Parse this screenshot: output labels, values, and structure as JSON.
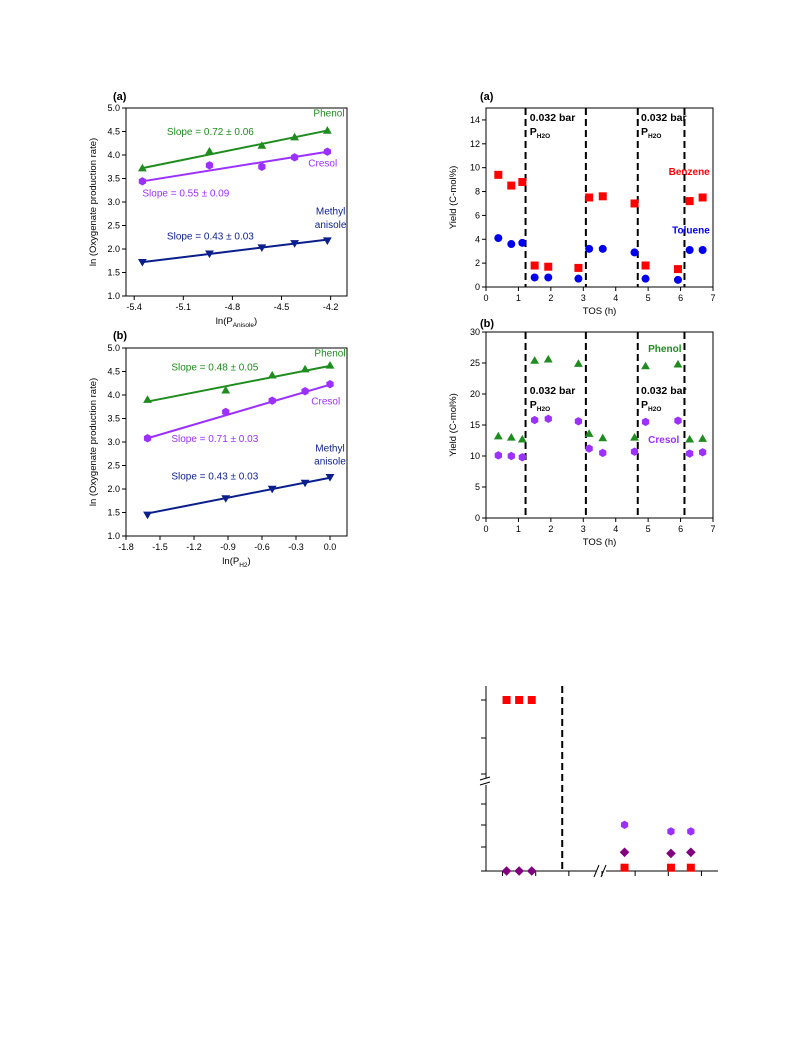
{
  "colors": {
    "phenol": "#1e8c1e",
    "cresol": "#9b30ff",
    "methyl_anisole": "#0a1e8c",
    "benzene": "#ff0000",
    "toluene": "#0000ee",
    "diamond": "#800080"
  },
  "chart_data": [
    {
      "id": "left-a",
      "type": "scatter",
      "panel_label": "(a)",
      "xlabel_main": "ln(P",
      "xlabel_sub": "Anisole",
      "xlabel_tail": ")",
      "ylabel": "ln (Oxygenate production rate)",
      "xlim": [
        -5.45,
        -4.1
      ],
      "ylim": [
        1.0,
        5.0
      ],
      "xticks": [
        -5.4,
        -5.1,
        -4.8,
        -4.5,
        -4.2
      ],
      "xtick_labels": [
        "-5.4",
        "-5.1",
        "-4.8",
        "-4.5",
        "-4.2"
      ],
      "yticks": [
        1.0,
        1.5,
        2.0,
        2.5,
        3.0,
        3.5,
        4.0,
        4.5,
        5.0
      ],
      "ytick_labels": [
        "1.0",
        "1.5",
        "2.0",
        "2.5",
        "3.0",
        "3.5",
        "4.0",
        "4.5",
        "5.0"
      ],
      "series": [
        {
          "name": "Phenol",
          "marker": "triangle-up",
          "color": "#1e8c1e",
          "x": [
            -5.35,
            -4.94,
            -4.62,
            -4.42,
            -4.22
          ],
          "y": [
            3.72,
            4.08,
            4.2,
            4.38,
            4.52
          ],
          "fit": [
            [
              -5.35,
              3.72
            ],
            [
              -4.22,
              4.52
            ]
          ]
        },
        {
          "name": "Cresol",
          "marker": "hexagon",
          "color": "#9b30ff",
          "x": [
            -5.35,
            -4.94,
            -4.62,
            -4.42,
            -4.22
          ],
          "y": [
            3.44,
            3.78,
            3.75,
            3.95,
            4.07
          ],
          "fit": [
            [
              -5.35,
              3.44
            ],
            [
              -4.22,
              4.07
            ]
          ]
        },
        {
          "name": "Methyl anisole",
          "marker": "triangle-down",
          "color": "#0a1e8c",
          "x": [
            -5.35,
            -4.94,
            -4.62,
            -4.42,
            -4.22
          ],
          "y": [
            1.72,
            1.9,
            2.03,
            2.12,
            2.18
          ],
          "fit": [
            [
              -5.35,
              1.72
            ],
            [
              -4.22,
              2.2
            ]
          ]
        }
      ],
      "annotations": [
        {
          "text": "Phenol",
          "x": -4.21,
          "y": 4.82,
          "color": "#1e8c1e",
          "anchor": "middle"
        },
        {
          "text": "Slope = 0.72 ± 0.06",
          "x": -5.2,
          "y": 4.43,
          "color": "#1e8c1e",
          "anchor": "start"
        },
        {
          "text": "Cresol",
          "x": -4.16,
          "y": 3.76,
          "color": "#9b30ff",
          "anchor": "end"
        },
        {
          "text": "Slope = 0.55 ± 0.09",
          "x": -5.35,
          "y": 3.12,
          "color": "#9b30ff",
          "anchor": "start"
        },
        {
          "text": "Methyl",
          "x": -4.2,
          "y": 2.73,
          "color": "#0a1e8c",
          "anchor": "middle"
        },
        {
          "text": "anisole",
          "x": -4.2,
          "y": 2.45,
          "color": "#0a1e8c",
          "anchor": "middle"
        },
        {
          "text": "Slope = 0.43 ± 0.03",
          "x": -5.2,
          "y": 2.2,
          "color": "#0a1e8c",
          "anchor": "start"
        }
      ]
    },
    {
      "id": "left-b",
      "type": "scatter",
      "panel_label": "(b)",
      "xlabel_main": "ln(P",
      "xlabel_sub": "H2",
      "xlabel_tail": ")",
      "ylabel": "ln (Oxygenate production rate)",
      "xlim": [
        -1.8,
        0.15
      ],
      "ylim": [
        1.0,
        5.0
      ],
      "xticks": [
        -1.8,
        -1.5,
        -1.2,
        -0.9,
        -0.6,
        -0.3,
        0.0
      ],
      "xtick_labels": [
        "-1.8",
        "-1.5",
        "-1.2",
        "-0.9",
        "-0.6",
        "-0.3",
        "0.0"
      ],
      "yticks": [
        1.0,
        1.5,
        2.0,
        2.5,
        3.0,
        3.5,
        4.0,
        4.5,
        5.0
      ],
      "ytick_labels": [
        "1.0",
        "1.5",
        "2.0",
        "2.5",
        "3.0",
        "3.5",
        "4.0",
        "4.5",
        "5.0"
      ],
      "series": [
        {
          "name": "Phenol",
          "marker": "triangle-up",
          "color": "#1e8c1e",
          "x": [
            -1.61,
            -0.92,
            -0.51,
            -0.22,
            0.0
          ],
          "y": [
            3.9,
            4.1,
            4.42,
            4.55,
            4.63
          ],
          "fit": [
            [
              -1.61,
              3.86
            ],
            [
              0.0,
              4.62
            ]
          ]
        },
        {
          "name": "Cresol",
          "marker": "hexagon",
          "color": "#9b30ff",
          "x": [
            -1.61,
            -0.92,
            -0.51,
            -0.22,
            0.0
          ],
          "y": [
            3.08,
            3.64,
            3.88,
            4.08,
            4.23
          ],
          "fit": [
            [
              -1.61,
              3.08
            ],
            [
              0.0,
              4.22
            ]
          ]
        },
        {
          "name": "Methyl anisole",
          "marker": "triangle-down",
          "color": "#0a1e8c",
          "x": [
            -1.61,
            -0.92,
            -0.51,
            -0.22,
            0.0
          ],
          "y": [
            1.45,
            1.8,
            2.0,
            2.13,
            2.25
          ],
          "fit": [
            [
              -1.61,
              1.48
            ],
            [
              0.0,
              2.24
            ]
          ]
        }
      ],
      "annotations": [
        {
          "text": "Phenol",
          "x": 0.0,
          "y": 4.82,
          "color": "#1e8c1e",
          "anchor": "middle"
        },
        {
          "text": "Slope = 0.48 ± 0.05",
          "x": -1.4,
          "y": 4.52,
          "color": "#1e8c1e",
          "anchor": "start"
        },
        {
          "text": "Cresol",
          "x": 0.09,
          "y": 3.8,
          "color": "#9b30ff",
          "anchor": "end"
        },
        {
          "text": "Slope = 0.71 ± 0.03",
          "x": -1.4,
          "y": 3.0,
          "color": "#9b30ff",
          "anchor": "start"
        },
        {
          "text": "Methyl",
          "x": 0.0,
          "y": 2.8,
          "color": "#0a1e8c",
          "anchor": "middle"
        },
        {
          "text": "anisole",
          "x": 0.0,
          "y": 2.52,
          "color": "#0a1e8c",
          "anchor": "middle"
        },
        {
          "text": "Slope = 0.43 ± 0.03",
          "x": -1.4,
          "y": 2.2,
          "color": "#0a1e8c",
          "anchor": "start"
        }
      ]
    },
    {
      "id": "right-a",
      "type": "scatter",
      "panel_label": "(a)",
      "xlabel": "TOS (h)",
      "ylabel": "Yield (C-mol%)",
      "xlim": [
        0,
        7
      ],
      "ylim": [
        0,
        15
      ],
      "xticks": [
        0,
        1,
        2,
        3,
        4,
        5,
        6,
        7
      ],
      "xtick_labels": [
        "0",
        "1",
        "2",
        "3",
        "4",
        "5",
        "6",
        "7"
      ],
      "yticks": [
        0,
        2,
        4,
        6,
        8,
        10,
        12,
        14
      ],
      "ytick_labels": [
        "0",
        "2",
        "4",
        "6",
        "8",
        "10",
        "12",
        "14"
      ],
      "dashed_x": [
        1.22,
        3.08,
        4.68,
        6.12
      ],
      "series": [
        {
          "name": "Benzene",
          "marker": "square",
          "color": "#ff0000",
          "x": [
            0.38,
            0.78,
            1.12,
            1.5,
            1.92,
            2.85,
            3.18,
            3.6,
            4.58,
            4.92,
            5.92,
            6.28,
            6.68
          ],
          "y": [
            9.4,
            8.5,
            8.8,
            1.8,
            1.7,
            1.6,
            7.5,
            7.6,
            7.0,
            1.8,
            1.5,
            7.2,
            7.5
          ]
        },
        {
          "name": "Toluene",
          "marker": "circle",
          "color": "#0000ee",
          "x": [
            0.38,
            0.78,
            1.12,
            1.5,
            1.92,
            2.85,
            3.18,
            3.6,
            4.58,
            4.92,
            5.92,
            6.28,
            6.68
          ],
          "y": [
            4.1,
            3.6,
            3.7,
            0.8,
            0.8,
            0.7,
            3.2,
            3.2,
            2.9,
            0.7,
            0.6,
            3.1,
            3.1
          ]
        }
      ],
      "annotations": [
        {
          "text": "Benzene",
          "x": 6.9,
          "y": 9.4,
          "color": "#ff0000",
          "anchor": "end",
          "bold": true
        },
        {
          "text": "Toluene",
          "x": 6.9,
          "y": 4.5,
          "color": "#0000ee",
          "anchor": "end",
          "bold": true
        }
      ],
      "pressure_labels": [
        {
          "value": "0.032 bar",
          "sub": "H2O",
          "x": 1.35,
          "y": 13.9
        },
        {
          "value": "0.032 bar",
          "sub": "H2O",
          "x": 4.78,
          "y": 13.9
        }
      ]
    },
    {
      "id": "right-b",
      "type": "scatter",
      "panel_label": "(b)",
      "xlabel": "TOS (h)",
      "ylabel": "Yield (C-mol%)",
      "xlim": [
        0,
        7
      ],
      "ylim": [
        0,
        30
      ],
      "xticks": [
        0,
        1,
        2,
        3,
        4,
        5,
        6,
        7
      ],
      "xtick_labels": [
        "0",
        "1",
        "2",
        "3",
        "4",
        "5",
        "6",
        "7"
      ],
      "yticks": [
        0,
        5,
        10,
        15,
        20,
        25,
        30
      ],
      "ytick_labels": [
        "0",
        "5",
        "10",
        "15",
        "20",
        "25",
        "30"
      ],
      "dashed_x": [
        1.22,
        3.08,
        4.68,
        6.12
      ],
      "series": [
        {
          "name": "Phenol",
          "marker": "triangle-up",
          "color": "#1e8c1e",
          "x": [
            0.38,
            0.78,
            1.12,
            1.5,
            1.92,
            2.85,
            3.18,
            3.6,
            4.58,
            4.92,
            5.92,
            6.28,
            6.68
          ],
          "y": [
            13.2,
            13.0,
            12.7,
            25.4,
            25.6,
            24.9,
            13.6,
            12.9,
            13.0,
            24.5,
            24.8,
            12.7,
            12.8
          ]
        },
        {
          "name": "Cresol",
          "marker": "hexagon",
          "color": "#9b30ff",
          "x": [
            0.38,
            0.78,
            1.12,
            1.5,
            1.92,
            2.85,
            3.18,
            3.6,
            4.58,
            4.92,
            5.92,
            6.28,
            6.68
          ],
          "y": [
            10.1,
            10.0,
            9.8,
            15.8,
            16.0,
            15.6,
            11.2,
            10.5,
            10.7,
            15.5,
            15.7,
            10.4,
            10.6
          ]
        }
      ],
      "annotations": [
        {
          "text": "Phenol",
          "x": 5.0,
          "y": 26.8,
          "color": "#1e8c1e",
          "anchor": "start",
          "bold": true
        },
        {
          "text": "Cresol",
          "x": 5.0,
          "y": 12.1,
          "color": "#9b30ff",
          "anchor": "start",
          "bold": true
        }
      ],
      "pressure_labels": [
        {
          "value": "0.032 bar",
          "sub": "H2O",
          "x": 1.35,
          "y": 20.0
        },
        {
          "value": "0.032 bar",
          "sub": "H2O",
          "x": 4.78,
          "y": 20.0
        }
      ]
    },
    {
      "id": "bottom",
      "type": "scatter",
      "axis_labels_visible": false,
      "dashed_x": [
        2.3
      ],
      "x_break_at": 3.2,
      "y_break": true,
      "xlim": [
        0,
        7
      ],
      "series": [
        {
          "name": "",
          "marker": "square",
          "color": "#ff0000",
          "x": [
            0.62,
            1.0,
            1.38,
            4.18,
            5.58,
            6.18
          ],
          "y": [
            10.0,
            10.0,
            10.0,
            0.15,
            0.15,
            0.15
          ]
        },
        {
          "name": "",
          "marker": "hexagon",
          "color": "#9b30ff",
          "x": [
            4.18,
            5.58,
            6.18
          ],
          "y": [
            2.1,
            1.8,
            1.8
          ]
        },
        {
          "name": "",
          "marker": "diamond",
          "color": "#800080",
          "x": [
            0.62,
            1.0,
            1.38,
            4.18,
            5.58,
            6.18
          ],
          "y": [
            0.0,
            0.0,
            0.0,
            0.85,
            0.8,
            0.85
          ]
        }
      ]
    }
  ]
}
